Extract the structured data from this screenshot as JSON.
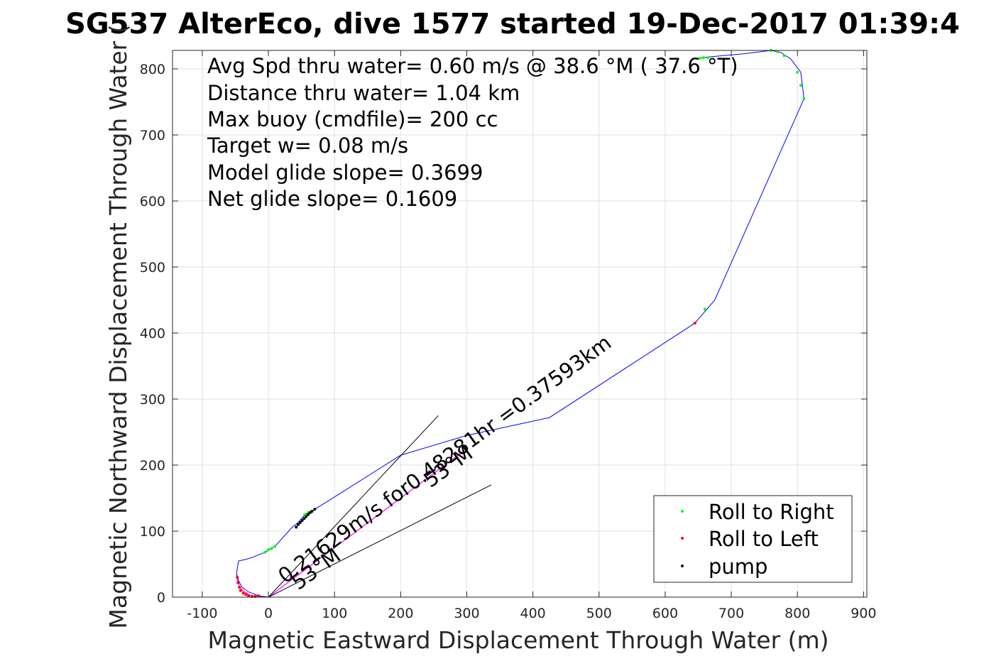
{
  "chart_data": {
    "type": "line",
    "title": "SG537 AlterEco, dive 1577 started 19-Dec-2017 01:39:4",
    "xlabel": "Magnetic Eastward Displacement Through Water (m)",
    "ylabel": "Magnetic Northward Displacement Through Water (",
    "xlim": [
      -145,
      905
    ],
    "ylim": [
      0,
      828
    ],
    "xticks": [
      "-100",
      "0",
      "100",
      "200",
      "300",
      "400",
      "500",
      "600",
      "700",
      "800",
      "900"
    ],
    "xtick_values": [
      -100,
      0,
      100,
      200,
      300,
      400,
      500,
      600,
      700,
      800,
      900
    ],
    "yticks": [
      "0",
      "100",
      "200",
      "300",
      "400",
      "500",
      "600",
      "700",
      "800"
    ],
    "ytick_values": [
      0,
      100,
      200,
      300,
      400,
      500,
      600,
      700,
      800
    ],
    "grid": true,
    "info_lines": [
      "Avg Spd thru water=  0.60 m/s @  38.6 °M ( 37.6 °T)",
      "Distance thru water=  1.04 km",
      "Max buoy (cmdfile)= 200 cc",
      "Target w= 0.08 m/s",
      "Model glide slope= 0.3699",
      "Net glide slope= 0.1609"
    ],
    "track": {
      "color": "#0000ff",
      "x": [
        0,
        -15,
        -30,
        -40,
        -45,
        -48,
        -47,
        -45,
        -35,
        -25,
        -5,
        10,
        35,
        45,
        55,
        65,
        70,
        110,
        200,
        300,
        425,
        645,
        675,
        810,
        805,
        790,
        775,
        760,
        720,
        665,
        650
      ],
      "y": [
        0,
        2,
        8,
        15,
        25,
        35,
        45,
        55,
        57,
        60,
        68,
        77,
        105,
        113,
        125,
        130,
        133,
        158,
        215,
        245,
        272,
        415,
        450,
        755,
        795,
        815,
        825,
        828,
        823,
        818,
        816
      ]
    },
    "roll_right_points": {
      "color": "#00ff00",
      "x": [
        -5,
        0,
        5,
        10,
        55,
        60,
        65,
        660,
        652,
        658,
        665,
        760,
        770,
        780,
        800,
        805,
        810
      ],
      "y": [
        68,
        72,
        74,
        77,
        125,
        128,
        130,
        436,
        816,
        817,
        817,
        828,
        826,
        820,
        795,
        775,
        755
      ]
    },
    "roll_left_points": {
      "color": "#ff0000",
      "x": [
        -47,
        -46,
        -44,
        -42,
        -38,
        -34,
        -30,
        -25,
        -20,
        -15,
        645
      ],
      "y": [
        30,
        22,
        15,
        10,
        6,
        4,
        2,
        1,
        1,
        2,
        415
      ]
    },
    "pump_points": {
      "color": "#000000",
      "x": [
        42,
        45,
        48,
        51,
        54,
        57,
        60,
        63,
        66,
        70
      ],
      "y": [
        106,
        110,
        113,
        116,
        119,
        122,
        125,
        128,
        130,
        133
      ]
    },
    "magenta_track": {
      "color": "#ff00ff",
      "x": [
        -48,
        -47,
        -45,
        -42,
        -38,
        -33,
        -28,
        -22,
        -15,
        -8,
        0,
        40,
        80,
        120,
        160,
        200,
        240,
        280,
        300
      ],
      "y": [
        35,
        28,
        20,
        14,
        9,
        6,
        3,
        2,
        1,
        1,
        0,
        30,
        60,
        90,
        120,
        150,
        180,
        210,
        225
      ]
    },
    "lines": [
      {
        "color": "#000000",
        "x": [
          0,
          257
        ],
        "y": [
          0,
          275
        ]
      },
      {
        "color": "#000000",
        "x": [
          0,
          337
        ],
        "y": [
          0,
          170
        ]
      }
    ],
    "annotations": [
      {
        "text": "0.21629m/s for0.48281hr =0.37593km",
        "x": 25,
        "y": 20,
        "angle": -36
      },
      {
        "text": "53°M",
        "x": 45,
        "y": 10,
        "angle": -36
      },
      {
        "text": "53°M",
        "x": 245,
        "y": 165,
        "angle": -36
      }
    ],
    "legend": {
      "position": "bottom-right",
      "entries": [
        {
          "label": "Roll to Right",
          "color": "#00ff00"
        },
        {
          "label": "Roll to Left",
          "color": "#ff0000"
        },
        {
          "label": "pump",
          "color": "#000000"
        }
      ]
    }
  }
}
